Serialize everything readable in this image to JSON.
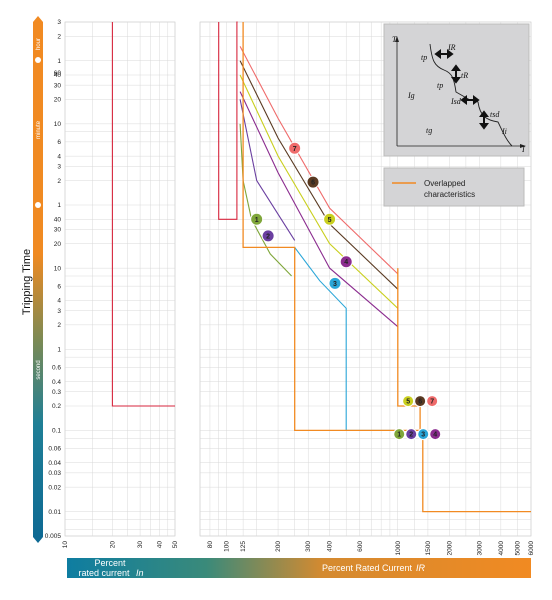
{
  "colors": {
    "orange": "#f18a22",
    "teal": "#0e7da1",
    "grid": "#d9d9d9",
    "inset_bg": "#d4d4d6",
    "curve_1": "#7fa63a",
    "curve_2": "#6a3fa0",
    "curve_3": "#2aa6d8",
    "curve_4": "#8b2c8f",
    "curve_5": "#c9cf1e",
    "curve_6": "#5a3a22",
    "curve_7": "#ef6b6b",
    "red": "#d7263d",
    "overlap": "#f18a22"
  },
  "chart_data": {
    "type": "line",
    "title": "",
    "ylabel": "Tripping Time",
    "yscale": "log",
    "time_units": [
      "hour",
      "minute",
      "second"
    ],
    "y_ticks_hour": [
      "3",
      "2",
      "1"
    ],
    "y_ticks_minute": [
      "60",
      "40",
      "30",
      "20",
      "10",
      "6",
      "4",
      "3",
      "2",
      "1"
    ],
    "y_ticks_second": [
      "40",
      "30",
      "20",
      "10",
      "6",
      "4",
      "3",
      "2",
      "1",
      "0.6",
      "0.4",
      "0.3",
      "0.2",
      "0.1",
      "0.06",
      "0.04",
      "0.03",
      "0.02",
      "0.01",
      "0.005"
    ],
    "left_panel": {
      "xlabel_line1": "Percent",
      "xlabel_line2": "rated current",
      "xlabel_symbol": "In",
      "x_ticks": [
        "10",
        "20",
        "30",
        "40",
        "50"
      ],
      "series": [
        {
          "name": "",
          "color": "red",
          "x_percent": [
            20,
            20,
            50
          ],
          "t_seconds": [
            10800,
            0.2,
            0.2
          ]
        }
      ]
    },
    "right_panel": {
      "xlabel": "Percent Rated Current",
      "xlabel_symbol": "IR",
      "xscale": "log",
      "x_ticks": [
        "80",
        "100",
        "125",
        "200",
        "300",
        "400",
        "600",
        "1000",
        "1500",
        "2000",
        "3000",
        "4000",
        "5000",
        "6000"
      ],
      "series": [
        {
          "name": "",
          "color": "red",
          "x_percent": [
            90,
            90,
            115,
            115,
            116,
            116
          ],
          "t_seconds": [
            10800,
            40,
            40,
            10800,
            10800,
            10800
          ]
        },
        {
          "name": "1",
          "color": "curve_1",
          "x_percent": [
            120,
            125,
            140,
            180,
            240
          ],
          "t_seconds": [
            600,
            120,
            40,
            15,
            8
          ]
        },
        {
          "name": "2",
          "color": "curve_2",
          "x_percent": [
            120,
            150,
            250
          ],
          "t_seconds": [
            1200,
            120,
            22
          ]
        },
        {
          "name": "3",
          "color": "curve_3",
          "x_percent": [
            250,
            350,
            500,
            500,
            1000
          ],
          "t_seconds": [
            18,
            7,
            3.2,
            0.1,
            0.1
          ]
        },
        {
          "name": "4",
          "color": "curve_4",
          "x_percent": [
            120,
            200,
            400,
            1000
          ],
          "t_seconds": [
            1500,
            150,
            10,
            1.9
          ]
        },
        {
          "name": "5",
          "color": "curve_5",
          "x_percent": [
            120,
            200,
            400,
            1000
          ],
          "t_seconds": [
            2400,
            240,
            20,
            3.2
          ]
        },
        {
          "name": "6",
          "color": "curve_6",
          "x_percent": [
            120,
            200,
            400,
            1000
          ],
          "t_seconds": [
            3600,
            400,
            35,
            5.5
          ]
        },
        {
          "name": "7",
          "color": "curve_7",
          "x_percent": [
            120,
            200,
            400,
            1000
          ],
          "t_seconds": [
            5400,
            700,
            55,
            8.5
          ]
        },
        {
          "name": "Overlapped characteristics",
          "color": "overlap",
          "x_percent": [
            125,
            125,
            250,
            250,
            1400,
            1400,
            1500,
            1500,
            6000
          ],
          "t_seconds": [
            10800,
            18,
            18,
            0.1,
            0.1,
            0.01,
            0.01,
            0.01,
            0.01
          ]
        },
        {
          "name": "",
          "color": "overlap",
          "x_percent": [
            1000,
            1000,
            1350,
            1350
          ],
          "t_seconds": [
            10,
            0.2,
            0.2,
            0.1
          ]
        }
      ],
      "badge_groups": [
        {
          "labels": [
            "5",
            "6",
            "7"
          ],
          "x_percent": 1150,
          "t_seconds": 0.23
        },
        {
          "labels": [
            "1",
            "2",
            "3",
            "4"
          ],
          "x_percent": 1020,
          "t_seconds": 0.09
        }
      ]
    },
    "legend": {
      "entries": [
        "Overlapped characteristics"
      ],
      "placement": "top-right"
    },
    "inset_labels": {
      "axis_y": "T",
      "axis_x": "I",
      "ir": "IR",
      "tp": "tp",
      "tr": "tR",
      "ig": "Ig",
      "tg": "tg",
      "isd": "Isd",
      "tsd": "tsd",
      "ii": "Ii",
      "fp": "tp"
    },
    "grid": true
  }
}
